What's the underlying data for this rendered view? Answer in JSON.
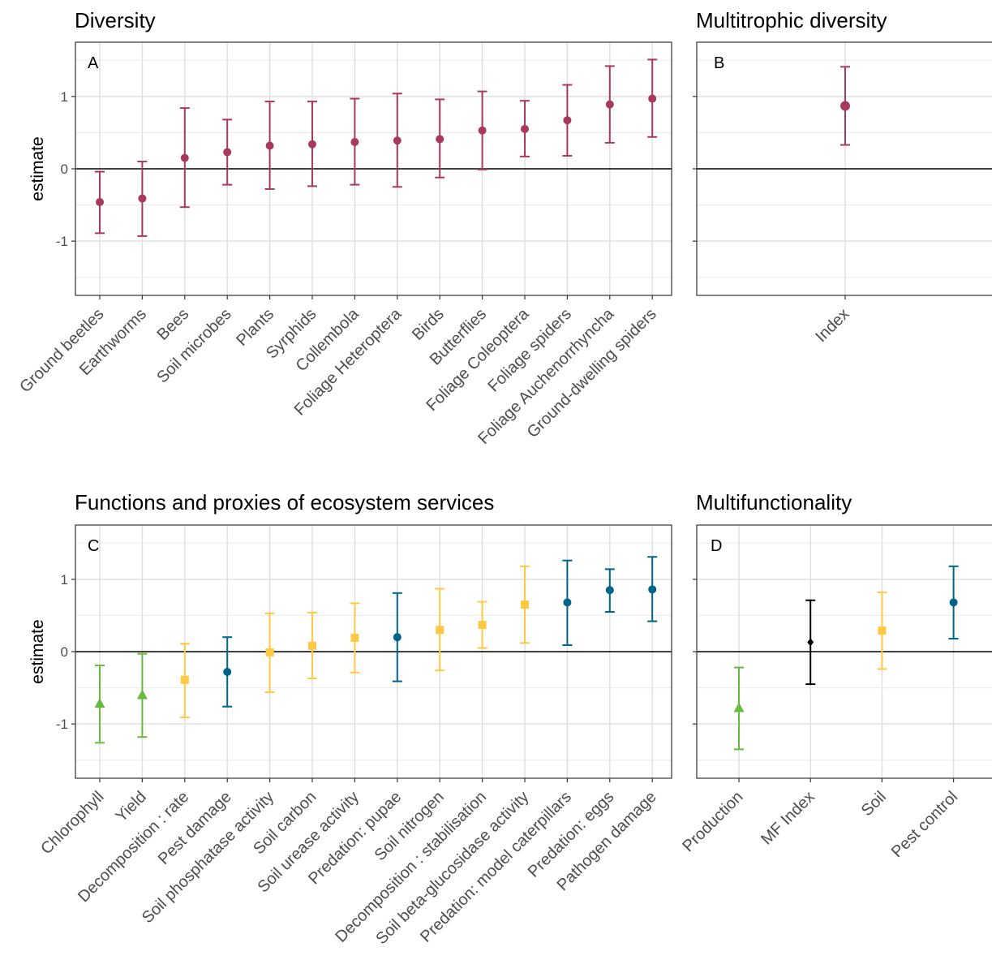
{
  "colors": {
    "diversity": "#A8395E",
    "production": "#66BB3C",
    "soil": "#FFC845",
    "pest_control": "#00638A",
    "mf_index": "#000000"
  },
  "chart_data": [
    {
      "panel": "A",
      "title": "Diversity",
      "type": "scatter",
      "style": "point-errorbar",
      "ylabel": "estimate",
      "xlabel": "",
      "ylim": [
        -1.75,
        1.75
      ],
      "yticks": [
        "-1",
        "0",
        "1"
      ],
      "grid": true,
      "categories": [
        "Ground beetles",
        "Earthworms",
        "Bees",
        "Soil microbes",
        "Plants",
        "Syrphids",
        "Collembola",
        "Foliage Heteroptera",
        "Birds",
        "Butterflies",
        "Foliage Coleoptera",
        "Foliage spiders",
        "Foliage Auchenorrhyncha",
        "Ground-dwelling spiders"
      ],
      "points": [
        {
          "estimate": -0.46,
          "lower": -0.89,
          "upper": -0.04,
          "color": "#A8395E",
          "shape": "circle"
        },
        {
          "estimate": -0.41,
          "lower": -0.93,
          "upper": 0.1,
          "color": "#A8395E",
          "shape": "circle"
        },
        {
          "estimate": 0.15,
          "lower": -0.53,
          "upper": 0.84,
          "color": "#A8395E",
          "shape": "circle"
        },
        {
          "estimate": 0.23,
          "lower": -0.22,
          "upper": 0.68,
          "color": "#A8395E",
          "shape": "circle"
        },
        {
          "estimate": 0.32,
          "lower": -0.28,
          "upper": 0.93,
          "color": "#A8395E",
          "shape": "circle"
        },
        {
          "estimate": 0.34,
          "lower": -0.24,
          "upper": 0.93,
          "color": "#A8395E",
          "shape": "circle"
        },
        {
          "estimate": 0.37,
          "lower": -0.22,
          "upper": 0.97,
          "color": "#A8395E",
          "shape": "circle"
        },
        {
          "estimate": 0.39,
          "lower": -0.25,
          "upper": 1.04,
          "color": "#A8395E",
          "shape": "circle"
        },
        {
          "estimate": 0.41,
          "lower": -0.12,
          "upper": 0.96,
          "color": "#A8395E",
          "shape": "circle"
        },
        {
          "estimate": 0.53,
          "lower": -0.01,
          "upper": 1.07,
          "color": "#A8395E",
          "shape": "circle"
        },
        {
          "estimate": 0.55,
          "lower": 0.17,
          "upper": 0.94,
          "color": "#A8395E",
          "shape": "circle"
        },
        {
          "estimate": 0.67,
          "lower": 0.18,
          "upper": 1.16,
          "color": "#A8395E",
          "shape": "circle"
        },
        {
          "estimate": 0.89,
          "lower": 0.36,
          "upper": 1.42,
          "color": "#A8395E",
          "shape": "circle"
        },
        {
          "estimate": 0.97,
          "lower": 0.44,
          "upper": 1.51,
          "color": "#A8395E",
          "shape": "circle"
        }
      ]
    },
    {
      "panel": "B",
      "title": "Multitrophic diversity",
      "type": "scatter",
      "style": "point-errorbar",
      "ylabel": "",
      "xlabel": "",
      "ylim": [
        -1.75,
        1.75
      ],
      "grid": true,
      "categories": [
        "Index"
      ],
      "points": [
        {
          "estimate": 0.87,
          "lower": 0.33,
          "upper": 1.41,
          "color": "#A8395E",
          "shape": "circle"
        }
      ]
    },
    {
      "panel": "C",
      "title": "Functions and proxies of ecosystem services",
      "type": "scatter",
      "style": "point-errorbar",
      "ylabel": "estimate",
      "xlabel": "",
      "ylim": [
        -1.75,
        1.75
      ],
      "yticks": [
        "-1",
        "0",
        "1"
      ],
      "grid": true,
      "categories": [
        "Chlorophyll",
        "Yield",
        "Decomposition : rate",
        "Pest damage",
        "Soil phosphatase activity",
        "Soil carbon",
        "Soil urease activity",
        "Predation: pupae",
        "Soil nitrogen",
        "Decomposition : stabilisation",
        "Soil beta-glucosidase activity",
        "Predation: model caterpillars",
        "Predation: eggs",
        "Pathogen damage"
      ],
      "points": [
        {
          "estimate": -0.72,
          "lower": -1.26,
          "upper": -0.19,
          "color": "#66BB3C",
          "shape": "triangle"
        },
        {
          "estimate": -0.6,
          "lower": -1.18,
          "upper": -0.03,
          "color": "#66BB3C",
          "shape": "triangle"
        },
        {
          "estimate": -0.39,
          "lower": -0.91,
          "upper": 0.11,
          "color": "#FFC845",
          "shape": "square"
        },
        {
          "estimate": -0.28,
          "lower": -0.76,
          "upper": 0.2,
          "color": "#00638A",
          "shape": "circle"
        },
        {
          "estimate": -0.01,
          "lower": -0.56,
          "upper": 0.53,
          "color": "#FFC845",
          "shape": "square"
        },
        {
          "estimate": 0.08,
          "lower": -0.37,
          "upper": 0.54,
          "color": "#FFC845",
          "shape": "square"
        },
        {
          "estimate": 0.19,
          "lower": -0.29,
          "upper": 0.67,
          "color": "#FFC845",
          "shape": "square"
        },
        {
          "estimate": 0.2,
          "lower": -0.41,
          "upper": 0.81,
          "color": "#00638A",
          "shape": "circle"
        },
        {
          "estimate": 0.3,
          "lower": -0.26,
          "upper": 0.87,
          "color": "#FFC845",
          "shape": "square"
        },
        {
          "estimate": 0.37,
          "lower": 0.05,
          "upper": 0.69,
          "color": "#FFC845",
          "shape": "square"
        },
        {
          "estimate": 0.65,
          "lower": 0.12,
          "upper": 1.18,
          "color": "#FFC845",
          "shape": "square"
        },
        {
          "estimate": 0.68,
          "lower": 0.09,
          "upper": 1.26,
          "color": "#00638A",
          "shape": "circle"
        },
        {
          "estimate": 0.85,
          "lower": 0.55,
          "upper": 1.14,
          "color": "#00638A",
          "shape": "circle"
        },
        {
          "estimate": 0.86,
          "lower": 0.42,
          "upper": 1.31,
          "color": "#00638A",
          "shape": "circle"
        }
      ]
    },
    {
      "panel": "D",
      "title": "Multifunctionality",
      "type": "scatter",
      "style": "point-errorbar",
      "ylabel": "",
      "xlabel": "",
      "ylim": [
        -1.75,
        1.75
      ],
      "grid": true,
      "categories": [
        "Production",
        "MF Index",
        "Soil",
        "Pest control"
      ],
      "points": [
        {
          "estimate": -0.78,
          "lower": -1.35,
          "upper": -0.22,
          "color": "#66BB3C",
          "shape": "triangle"
        },
        {
          "estimate": 0.13,
          "lower": -0.45,
          "upper": 0.71,
          "color": "#000000",
          "shape": "diamond"
        },
        {
          "estimate": 0.29,
          "lower": -0.24,
          "upper": 0.82,
          "color": "#FFC845",
          "shape": "square"
        },
        {
          "estimate": 0.68,
          "lower": 0.18,
          "upper": 1.18,
          "color": "#00638A",
          "shape": "circle"
        }
      ]
    }
  ]
}
